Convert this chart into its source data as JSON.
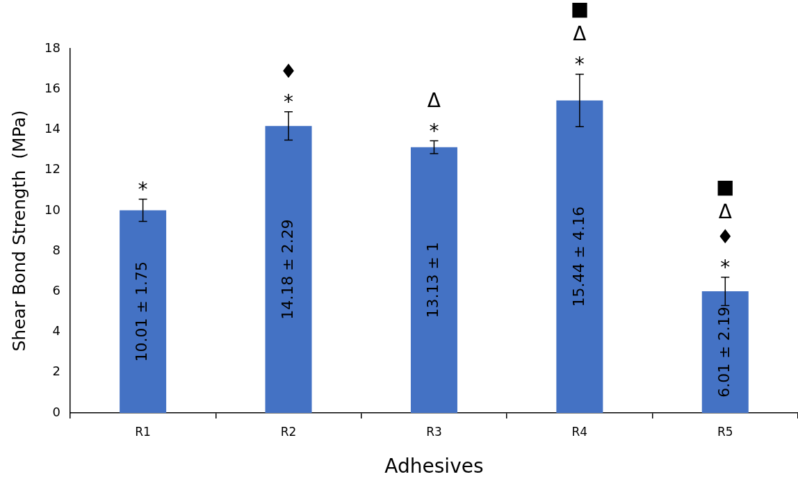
{
  "chart_data": {
    "type": "bar",
    "xlabel": "Adhesives",
    "ylabel": "Shear Bond Strength  (MPa)",
    "categories": [
      "R1",
      "R2",
      "R3",
      "R4",
      "R5"
    ],
    "values": [
      10.01,
      14.18,
      13.13,
      15.44,
      6.01
    ],
    "color": "#4472c4",
    "errors": [
      0.55,
      0.7,
      0.32,
      1.3,
      0.7
    ],
    "value_labels": [
      "10.01 ± 1.75",
      "14.18 ± 2.29",
      "13.13 ± 1",
      "15.44 ± 4.16",
      "6.01 ± 2.19"
    ],
    "ylim": [
      0,
      18
    ],
    "yticks": [
      0,
      2,
      4,
      6,
      8,
      10,
      12,
      14,
      16,
      18
    ],
    "annotations": [
      "*",
      "*",
      "♦",
      "*",
      "Δ",
      "*",
      "Δ",
      "■",
      "*",
      "♦",
      "Δ",
      "■"
    ]
  }
}
